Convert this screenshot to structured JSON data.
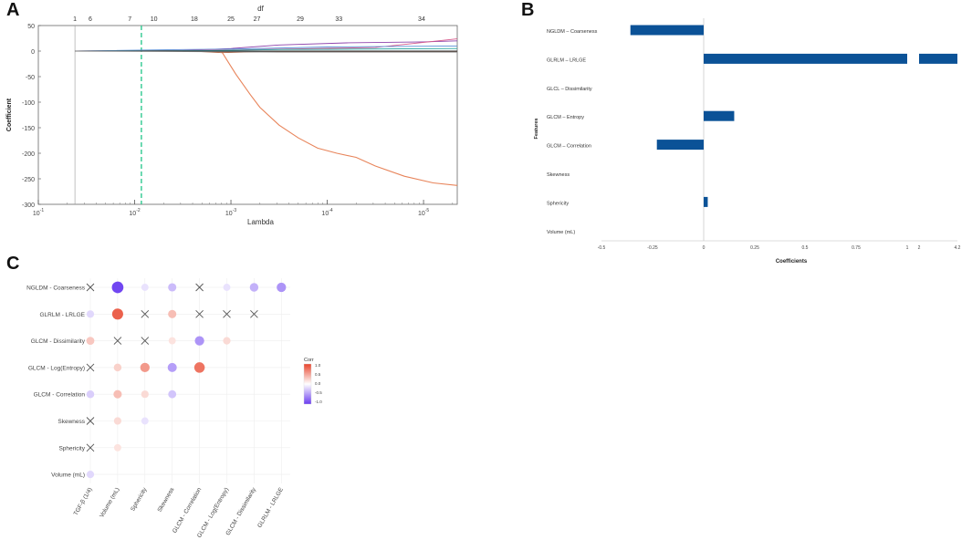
{
  "panel_labels": {
    "a": "A",
    "b": "B",
    "c": "C"
  },
  "colors": {
    "bar": "#0b5297",
    "lasso_main": "#e8845a",
    "lasso_cv": "#2ec98f",
    "corr_pos": "#e8442c",
    "corr_neg": "#6a3cf0"
  },
  "chart_data": [
    {
      "id": "A",
      "type": "line",
      "title": "df",
      "xlabel": "Lambda",
      "ylabel": "Coefficient",
      "x_scale": "log",
      "xlim_log10": [
        -1,
        -5.35
      ],
      "ylim": [
        -300,
        50
      ],
      "yticks": [
        "50",
        "0",
        "-50",
        "-100",
        "-150",
        "-200",
        "-250",
        "-300"
      ],
      "ytick_values": [
        50,
        0,
        -50,
        -100,
        -150,
        -200,
        -250,
        -300
      ],
      "xticks": [
        {
          "base": "10",
          "exp": "-1",
          "log10": -1
        },
        {
          "base": "10",
          "exp": "-2",
          "log10": -2
        },
        {
          "base": "10",
          "exp": "-3",
          "log10": -3
        },
        {
          "base": "10",
          "exp": "-4",
          "log10": -4
        },
        {
          "base": "10",
          "exp": "-5",
          "log10": -5
        }
      ],
      "df_ticks": [
        {
          "label": "1",
          "log10": -1.38
        },
        {
          "label": "6",
          "log10": -1.54
        },
        {
          "label": "7",
          "log10": -1.95
        },
        {
          "label": "10",
          "log10": -2.2
        },
        {
          "label": "18",
          "log10": -2.62
        },
        {
          "label": "25",
          "log10": -3.0
        },
        {
          "label": "27",
          "log10": -3.27
        },
        {
          "label": "29",
          "log10": -3.72
        },
        {
          "label": "33",
          "log10": -4.12
        },
        {
          "label": "34",
          "log10": -4.98
        }
      ],
      "vlines": [
        {
          "log10": -1.38,
          "style": "solid"
        },
        {
          "log10": -2.07,
          "style": "dashed"
        }
      ],
      "series": [
        {
          "name": "main",
          "color": "#e8845a",
          "points": [
            [
              -2.9,
              0
            ],
            [
              -3.05,
              -45
            ],
            [
              -3.2,
              -85
            ],
            [
              -3.3,
              -110
            ],
            [
              -3.5,
              -145
            ],
            [
              -3.7,
              -170
            ],
            [
              -3.9,
              -190
            ],
            [
              -4.1,
              -200
            ],
            [
              -4.3,
              -208
            ],
            [
              -4.5,
              -225
            ],
            [
              -4.8,
              -245
            ],
            [
              -5.1,
              -258
            ],
            [
              -5.35,
              -263
            ]
          ]
        },
        {
          "name": "s2",
          "color": "#8e44ad",
          "points": [
            [
              -1.38,
              0
            ],
            [
              -2.5,
              1
            ],
            [
              -3.0,
              5
            ],
            [
              -3.5,
              12
            ],
            [
              -4.2,
              16
            ],
            [
              -5.0,
              18
            ],
            [
              -5.35,
              20
            ]
          ]
        },
        {
          "name": "s3",
          "color": "#d65a8c",
          "points": [
            [
              -1.38,
              0
            ],
            [
              -3.0,
              2
            ],
            [
              -4.5,
              7
            ],
            [
              -5.35,
              24
            ]
          ]
        },
        {
          "name": "s4",
          "color": "#5a8fd6",
          "points": [
            [
              -1.38,
              0
            ],
            [
              -2.5,
              3
            ],
            [
              -3.0,
              4
            ],
            [
              -4.0,
              8
            ],
            [
              -5.35,
              10
            ]
          ]
        },
        {
          "name": "s5",
          "color": "#2aa6a0",
          "points": [
            [
              -1.38,
              0
            ],
            [
              -2.8,
              1
            ],
            [
              -3.5,
              3
            ],
            [
              -5.35,
              5
            ]
          ]
        },
        {
          "name": "s6",
          "color": "#b6603a",
          "points": [
            [
              -1.38,
              0
            ],
            [
              -2.6,
              0
            ],
            [
              -2.9,
              -3
            ],
            [
              -3.3,
              -1
            ],
            [
              -5.35,
              -1
            ]
          ]
        },
        {
          "name": "s7",
          "color": "#333333",
          "points": [
            [
              -1.38,
              0
            ],
            [
              -5.35,
              0
            ]
          ]
        },
        {
          "name": "s8",
          "color": "#7a7a7a",
          "points": [
            [
              -1.38,
              0
            ],
            [
              -3.5,
              -2
            ],
            [
              -5.35,
              -2
            ]
          ]
        }
      ]
    },
    {
      "id": "B",
      "type": "bar",
      "orientation": "horizontal",
      "xlabel": "Coefficients",
      "ylabel": "Features",
      "categories": [
        "NGLDM – Coarseness",
        "GLRLM – LRLGE",
        "GLCL – Dissimilarity",
        "GLCM – Entropy",
        "GLCM – Correlation",
        "Skewness",
        "Sphericity",
        "Volume (mL)"
      ],
      "values": [
        -0.36,
        4.2,
        0.0,
        0.15,
        -0.23,
        0.0,
        0.02,
        0.0
      ],
      "axis_break": {
        "from": 1.0,
        "to": 2.0
      },
      "xticks": [
        "-0.5",
        "-0.25",
        "0",
        "0.25",
        "0.5",
        "0.75",
        "1",
        "2",
        "4.2"
      ]
    },
    {
      "id": "C",
      "type": "heatmap",
      "legend_title": "Corr",
      "legend_ticks": [
        "1.0",
        "0.5",
        "0.0",
        "-0.5",
        "-1.0"
      ],
      "rows": [
        "NGLDM - Coarseness",
        "GLRLM - LRLGE",
        "GLCM - Dissimilarity",
        "GLCM - Log(Entropy)",
        "GLCM - Correlation",
        "Skewness",
        "Sphericity",
        "Volume (mL)"
      ],
      "cols": [
        "TGF-β (1/4)",
        "Volume (mL)",
        "Sphericity",
        "Skewness",
        "GLCM - Correlation",
        "GLCM - Log(Entropy)",
        "GLCM - Dissimilarity",
        "GLRLM - LRLGE"
      ],
      "values": [
        [
          null,
          -0.95,
          -0.15,
          -0.35,
          null,
          -0.15,
          -0.4,
          -0.55
        ],
        [
          -0.2,
          0.85,
          null,
          0.35,
          null,
          null,
          null,
          null
        ],
        [
          0.3,
          null,
          null,
          0.15,
          -0.55,
          0.2,
          null,
          null
        ],
        [
          null,
          0.25,
          0.55,
          -0.5,
          0.75,
          null,
          null,
          null
        ],
        [
          -0.25,
          0.35,
          0.2,
          -0.3,
          null,
          null,
          null,
          null
        ],
        [
          null,
          0.2,
          -0.15,
          null,
          null,
          null,
          null,
          null
        ],
        [
          null,
          0.15,
          null,
          null,
          null,
          null,
          null,
          null
        ],
        [
          -0.2,
          null,
          null,
          null,
          null,
          null,
          null,
          null
        ]
      ],
      "cross_cells": [
        [
          0,
          0
        ],
        [
          0,
          4
        ],
        [
          1,
          2
        ],
        [
          1,
          4
        ],
        [
          1,
          5
        ],
        [
          1,
          6
        ],
        [
          2,
          1
        ],
        [
          2,
          2
        ],
        [
          3,
          0
        ],
        [
          5,
          0
        ],
        [
          6,
          0
        ]
      ]
    }
  ]
}
